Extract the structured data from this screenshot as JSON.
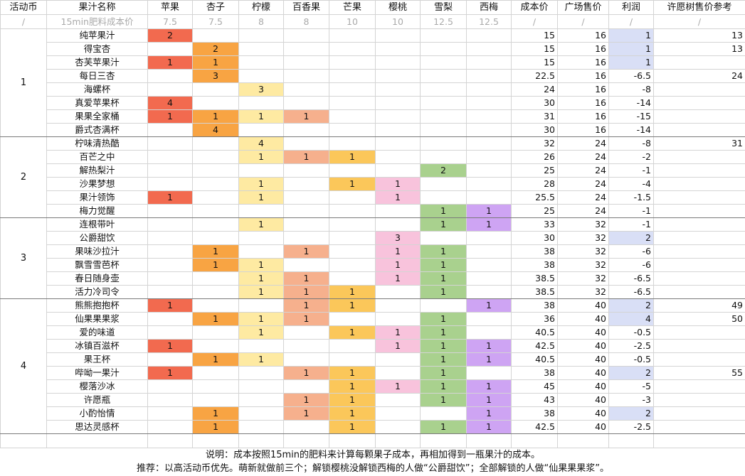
{
  "table": {
    "header": [
      "活动币",
      "果汁名称",
      "苹果",
      "杏子",
      "柠檬",
      "百香果",
      "芒果",
      "樱桃",
      "雪梨",
      "西梅",
      "成本价",
      "广场售价",
      "利润",
      "许愿树售价参考"
    ],
    "subheader": [
      "/",
      "15min肥料成本价",
      7.5,
      7.5,
      8,
      8,
      10,
      10,
      12.5,
      12.5,
      "/",
      "/",
      "/",
      "/"
    ],
    "fruit_colors": [
      "#f26a4f",
      "#f8a443",
      "#feeaa2",
      "#f6b08d",
      "#fbc75a",
      "#f8c3dc",
      "#a9d18e",
      "#cea4f3"
    ],
    "profit_positive_color": "#d9dff6",
    "groups": [
      {
        "coin": "1",
        "rows": [
          {
            "name": "纯苹果汁",
            "amounts": [
              2,
              null,
              null,
              null,
              null,
              null,
              null,
              null
            ],
            "cost": 15,
            "price": 16,
            "profit": 1,
            "reference": 13
          },
          {
            "name": "得宝杏",
            "amounts": [
              null,
              2,
              null,
              null,
              null,
              null,
              null,
              null
            ],
            "cost": 15,
            "price": 16,
            "profit": 1,
            "reference": 13
          },
          {
            "name": "杏芙苹果汁",
            "amounts": [
              1,
              1,
              null,
              null,
              null,
              null,
              null,
              null
            ],
            "cost": 15,
            "price": 16,
            "profit": 1,
            "reference": null
          },
          {
            "name": "每日三杏",
            "amounts": [
              null,
              3,
              null,
              null,
              null,
              null,
              null,
              null
            ],
            "cost": 22.5,
            "price": 16,
            "profit": -6.5,
            "reference": 24
          },
          {
            "name": "海螺杯",
            "amounts": [
              null,
              null,
              3,
              null,
              null,
              null,
              null,
              null
            ],
            "cost": 24,
            "price": 16,
            "profit": -8,
            "reference": null
          },
          {
            "name": "真爱苹果杯",
            "amounts": [
              4,
              null,
              null,
              null,
              null,
              null,
              null,
              null
            ],
            "cost": 30,
            "price": 16,
            "profit": -14,
            "reference": null
          },
          {
            "name": "果果全家桶",
            "amounts": [
              1,
              1,
              1,
              1,
              null,
              null,
              null,
              null
            ],
            "cost": 31,
            "price": 16,
            "profit": -15,
            "reference": null
          },
          {
            "name": "爵式杏满杯",
            "amounts": [
              null,
              4,
              null,
              null,
              null,
              null,
              null,
              null
            ],
            "cost": 30,
            "price": 16,
            "profit": -14,
            "reference": null
          }
        ]
      },
      {
        "coin": "2",
        "rows": [
          {
            "name": "柠味清热酷",
            "amounts": [
              null,
              null,
              4,
              null,
              null,
              null,
              null,
              null
            ],
            "cost": 32,
            "price": 24,
            "profit": -8,
            "reference": 31
          },
          {
            "name": "百芒之中",
            "amounts": [
              null,
              null,
              1,
              1,
              1,
              null,
              null,
              null
            ],
            "cost": 26,
            "price": 24,
            "profit": -2,
            "reference": null
          },
          {
            "name": "解热梨汁",
            "amounts": [
              null,
              null,
              null,
              null,
              null,
              null,
              2,
              null
            ],
            "cost": 25,
            "price": 24,
            "profit": -1,
            "reference": null
          },
          {
            "name": "沙果梦想",
            "amounts": [
              null,
              null,
              1,
              null,
              1,
              1,
              null,
              null
            ],
            "cost": 28,
            "price": 24,
            "profit": -4,
            "reference": null
          },
          {
            "name": "果汁领饰",
            "amounts": [
              1,
              null,
              1,
              null,
              null,
              1,
              null,
              null
            ],
            "cost": 25.5,
            "price": 24,
            "profit": -1.5,
            "reference": null
          },
          {
            "name": "梅力觉醒",
            "amounts": [
              null,
              null,
              null,
              null,
              null,
              null,
              1,
              1
            ],
            "cost": 25,
            "price": 24,
            "profit": -1,
            "reference": null
          }
        ]
      },
      {
        "coin": "3",
        "rows": [
          {
            "name": "连根带叶",
            "amounts": [
              null,
              null,
              1,
              null,
              null,
              null,
              1,
              1
            ],
            "cost": 33,
            "price": 32,
            "profit": -1,
            "reference": null
          },
          {
            "name": "公爵甜饮",
            "amounts": [
              null,
              null,
              null,
              null,
              null,
              3,
              null,
              null
            ],
            "cost": 30,
            "price": 32,
            "profit": 2,
            "reference": null
          },
          {
            "name": "果味沙拉汁",
            "amounts": [
              null,
              1,
              null,
              1,
              null,
              1,
              1,
              null
            ],
            "cost": 38,
            "price": 32,
            "profit": -6,
            "reference": null
          },
          {
            "name": "飘雪雪芭杯",
            "amounts": [
              null,
              1,
              1,
              null,
              null,
              1,
              1,
              null
            ],
            "cost": 38,
            "price": 32,
            "profit": -6,
            "reference": null
          },
          {
            "name": "春日随身壶",
            "amounts": [
              null,
              null,
              1,
              1,
              null,
              1,
              1,
              null
            ],
            "cost": 38.5,
            "price": 32,
            "profit": -6.5,
            "reference": null
          },
          {
            "name": "活力冷司令",
            "amounts": [
              null,
              null,
              1,
              1,
              1,
              null,
              1,
              null
            ],
            "cost": 38.5,
            "price": 32,
            "profit": -6.5,
            "reference": null
          }
        ]
      },
      {
        "coin": "4",
        "rows": [
          {
            "name": "熊熊抱抱杯",
            "amounts": [
              1,
              null,
              null,
              1,
              1,
              null,
              null,
              1
            ],
            "cost": 38,
            "price": 40,
            "profit": 2,
            "reference": 49
          },
          {
            "name": "仙果果果浆",
            "amounts": [
              null,
              1,
              1,
              1,
              null,
              null,
              1,
              null
            ],
            "cost": 36,
            "price": 40,
            "profit": 4,
            "reference": 50
          },
          {
            "name": "爱的味道",
            "amounts": [
              null,
              null,
              1,
              null,
              1,
              1,
              1,
              null
            ],
            "cost": 40.5,
            "price": 40,
            "profit": -0.5,
            "reference": null
          },
          {
            "name": "冰镇百滋杯",
            "amounts": [
              1,
              null,
              null,
              null,
              null,
              1,
              1,
              1
            ],
            "cost": 42.5,
            "price": 40,
            "profit": -2.5,
            "reference": null
          },
          {
            "name": "果王杯",
            "amounts": [
              null,
              1,
              1,
              null,
              null,
              null,
              1,
              1
            ],
            "cost": 40.5,
            "price": 40,
            "profit": -0.5,
            "reference": null
          },
          {
            "name": "哔呦一果汁",
            "amounts": [
              1,
              null,
              null,
              1,
              1,
              null,
              1,
              null
            ],
            "cost": 38,
            "price": 40,
            "profit": 2,
            "reference": 55
          },
          {
            "name": "樱落沙冰",
            "amounts": [
              null,
              null,
              null,
              null,
              1,
              1,
              1,
              1
            ],
            "cost": 45,
            "price": 40,
            "profit": -5,
            "reference": null
          },
          {
            "name": "许愿瓶",
            "amounts": [
              null,
              null,
              null,
              1,
              1,
              null,
              1,
              1
            ],
            "cost": 43,
            "price": 40,
            "profit": -3,
            "reference": null
          },
          {
            "name": "小酌怡情",
            "amounts": [
              null,
              1,
              null,
              1,
              1,
              null,
              null,
              1
            ],
            "cost": 38,
            "price": 40,
            "profit": 2,
            "reference": null
          },
          {
            "name": "思达灵感杯",
            "amounts": [
              null,
              1,
              null,
              null,
              1,
              null,
              1,
              1
            ],
            "cost": 42.5,
            "price": 40,
            "profit": -2.5,
            "reference": null
          }
        ]
      }
    ]
  },
  "notes": [
    "说明：成本按照15min的肥料来计算每颗果子成本，再相加得到一瓶果汁的成本。",
    "推荐：以高活动币优先。萌新就做前三个；解锁樱桃没解锁西梅的人做“公爵甜饮”；全部解锁的人做“仙果果果浆”。"
  ]
}
